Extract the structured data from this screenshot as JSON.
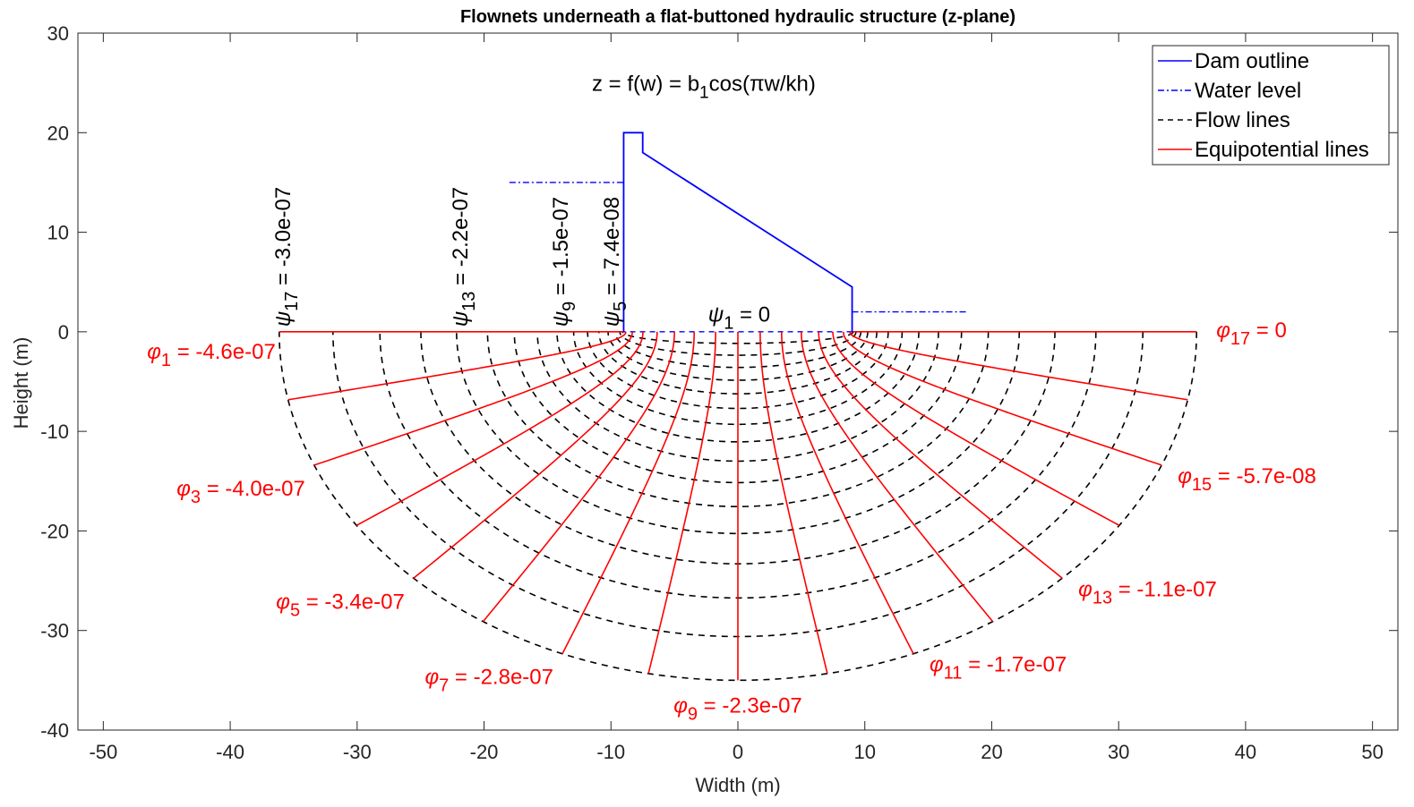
{
  "chart_data": {
    "type": "line",
    "title": "Flownets underneath a flat-buttoned hydraulic structure (z-plane)",
    "xlabel": "Width (m)",
    "ylabel": "Height (m)",
    "xlim": [
      -52,
      52
    ],
    "ylim": [
      -40,
      30
    ],
    "xticks": [
      -50,
      -40,
      -30,
      -20,
      -10,
      0,
      10,
      20,
      30,
      40,
      50
    ],
    "yticks": [
      -40,
      -30,
      -20,
      -10,
      0,
      10,
      20,
      30
    ],
    "grid": false,
    "legend_position": "top-right",
    "equation": {
      "left": "z = f(w) = b",
      "sub": "1",
      "right": "cos(πw/kh)"
    },
    "legend": [
      {
        "label": "Dam outline",
        "color": "#0000ff",
        "style": "solid"
      },
      {
        "label": "Water level",
        "color": "#0000ff",
        "style": "dashdot"
      },
      {
        "label": "Flow lines",
        "color": "#000000",
        "style": "dashed"
      },
      {
        "label": "Equipotential lines",
        "color": "#ff0000",
        "style": "solid"
      }
    ],
    "structure": {
      "half_width_b1": 9,
      "dam_outline": [
        [
          -9,
          0
        ],
        [
          -9,
          20
        ],
        [
          -7.5,
          20
        ],
        [
          -7.5,
          18
        ],
        [
          9,
          4.5
        ],
        [
          9,
          0
        ]
      ],
      "upstream_water_level": {
        "x": [
          -18,
          -9
        ],
        "y": 15
      },
      "downstream_water_level": {
        "x": [
          9,
          18
        ],
        "y": 2
      }
    },
    "flow_lines": {
      "count": 17,
      "description_of_values": "psi index",
      "psi_indices": [
        1,
        2,
        3,
        4,
        5,
        6,
        7,
        8,
        9,
        10,
        11,
        12,
        13,
        14,
        15,
        16,
        17
      ]
    },
    "equipotential_lines": {
      "count": 17,
      "phi_indices": [
        1,
        2,
        3,
        4,
        5,
        6,
        7,
        8,
        9,
        10,
        11,
        12,
        13,
        14,
        15,
        16,
        17
      ]
    },
    "psi_labels": [
      {
        "sym": "ψ",
        "sub": "17",
        "value": " = -3.0e-07",
        "idx": 17
      },
      {
        "sym": "ψ",
        "sub": "13",
        "value": " = -2.2e-07",
        "idx": 13
      },
      {
        "sym": "ψ",
        "sub": "9",
        "value": " = -1.5e-07",
        "idx": 9
      },
      {
        "sym": "ψ",
        "sub": "5",
        "value": " = -7.4e-08",
        "idx": 5
      }
    ],
    "psi1_label": {
      "sym": "ψ",
      "sub": "1",
      "value": " = 0"
    },
    "phi_labels": [
      {
        "sym": "φ",
        "sub": "1",
        "value": " = -4.6e-07",
        "idx": 1
      },
      {
        "sym": "φ",
        "sub": "3",
        "value": " = -4.0e-07",
        "idx": 3
      },
      {
        "sym": "φ",
        "sub": "5",
        "value": " = -3.4e-07",
        "idx": 5
      },
      {
        "sym": "φ",
        "sub": "7",
        "value": " = -2.8e-07",
        "idx": 7
      },
      {
        "sym": "φ",
        "sub": "9",
        "value": " = -2.3e-07",
        "idx": 9
      },
      {
        "sym": "φ",
        "sub": "11",
        "value": " = -1.7e-07",
        "idx": 11
      },
      {
        "sym": "φ",
        "sub": "13",
        "value": " = -1.1e-07",
        "idx": 13
      },
      {
        "sym": "φ",
        "sub": "15",
        "value": " = -5.7e-08",
        "idx": 15
      },
      {
        "sym": "φ",
        "sub": "17",
        "value": " = 0",
        "idx": 17
      }
    ]
  },
  "colors": {
    "dam": "#0000ff",
    "water": "#0000ff",
    "flow": "#000000",
    "equipotential": "#ff0000",
    "axis": "#262626"
  }
}
